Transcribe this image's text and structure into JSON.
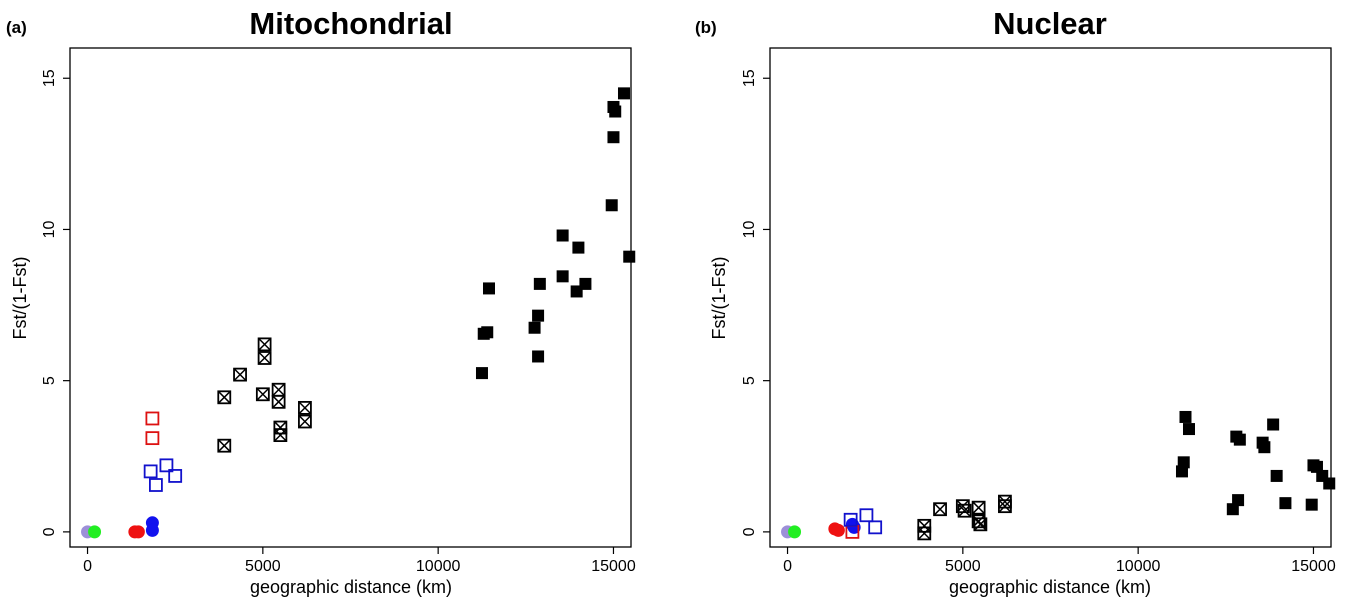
{
  "chart_data": [
    {
      "panel_label": "(a)",
      "type": "scatter",
      "title": "Mitochondrial",
      "xlabel": "geographic distance (km)",
      "ylabel": "Fst/(1-Fst)",
      "xlim": [
        -500,
        15500
      ],
      "ylim": [
        -0.5,
        16
      ],
      "xticks": [
        0,
        5000,
        10000,
        15000
      ],
      "yticks": [
        0,
        5,
        10,
        15
      ],
      "grid": false,
      "legend": "none",
      "series": [
        {
          "marker": "circle-filled",
          "color": "#9c8fd8",
          "points": [
            [
              0,
              0
            ]
          ]
        },
        {
          "marker": "circle-filled",
          "color": "#22ee22",
          "points": [
            [
              200,
              0
            ]
          ]
        },
        {
          "marker": "circle-filled",
          "color": "#ee1111",
          "points": [
            [
              1350,
              0
            ],
            [
              1450,
              0
            ]
          ]
        },
        {
          "marker": "circle-filled",
          "color": "#1111ee",
          "points": [
            [
              1850,
              0.3
            ],
            [
              1850,
              0.05
            ]
          ]
        },
        {
          "marker": "square-open",
          "color": "#dd1111",
          "points": [
            [
              1850,
              3.75
            ],
            [
              1850,
              3.1
            ]
          ]
        },
        {
          "marker": "square-open",
          "color": "#1111cc",
          "points": [
            [
              1800,
              2.0
            ],
            [
              1950,
              1.55
            ],
            [
              2250,
              2.2
            ],
            [
              2500,
              1.85
            ]
          ]
        },
        {
          "marker": "square-x",
          "color": "#000000",
          "points": [
            [
              3900,
              4.45
            ],
            [
              3900,
              2.85
            ],
            [
              4350,
              5.2
            ],
            [
              5050,
              6.2
            ],
            [
              5050,
              5.75
            ],
            [
              5000,
              4.55
            ],
            [
              5450,
              4.7
            ],
            [
              5450,
              4.3
            ],
            [
              5500,
              3.45
            ],
            [
              5500,
              3.2
            ],
            [
              6200,
              4.1
            ],
            [
              6200,
              3.65
            ]
          ]
        },
        {
          "marker": "square-filled",
          "color": "#000000",
          "points": [
            [
              11250,
              5.25
            ],
            [
              11300,
              6.55
            ],
            [
              11400,
              6.6
            ],
            [
              11450,
              8.05
            ],
            [
              12750,
              6.75
            ],
            [
              12850,
              7.15
            ],
            [
              12900,
              8.2
            ],
            [
              12850,
              5.8
            ],
            [
              13550,
              9.8
            ],
            [
              13550,
              8.45
            ],
            [
              13950,
              7.95
            ],
            [
              14000,
              9.4
            ],
            [
              14200,
              8.2
            ],
            [
              14950,
              10.8
            ],
            [
              15000,
              14.05
            ],
            [
              15050,
              13.9
            ],
            [
              15000,
              13.05
            ],
            [
              15300,
              14.5
            ],
            [
              15450,
              9.1
            ]
          ]
        }
      ]
    },
    {
      "panel_label": "(b)",
      "type": "scatter",
      "title": "Nuclear",
      "xlabel": "geographic distance (km)",
      "ylabel": "Fst/(1-Fst)",
      "xlim": [
        -500,
        15500
      ],
      "ylim": [
        -0.5,
        16
      ],
      "xticks": [
        0,
        5000,
        10000,
        15000
      ],
      "yticks": [
        0,
        5,
        10,
        15
      ],
      "grid": false,
      "legend": "none",
      "series": [
        {
          "marker": "circle-filled",
          "color": "#9c8fd8",
          "points": [
            [
              0,
              0
            ]
          ]
        },
        {
          "marker": "circle-filled",
          "color": "#22ee22",
          "points": [
            [
              200,
              0
            ]
          ]
        },
        {
          "marker": "circle-filled",
          "color": "#ee1111",
          "points": [
            [
              1350,
              0.1
            ],
            [
              1450,
              0.05
            ]
          ]
        },
        {
          "marker": "circle-filled",
          "color": "#1111ee",
          "points": [
            [
              1850,
              0.25
            ],
            [
              1900,
              0.15
            ]
          ]
        },
        {
          "marker": "square-open",
          "color": "#dd1111",
          "points": [
            [
              1850,
              0.0
            ]
          ]
        },
        {
          "marker": "square-open",
          "color": "#1111cc",
          "points": [
            [
              1800,
              0.4
            ],
            [
              2250,
              0.55
            ],
            [
              2500,
              0.15
            ]
          ]
        },
        {
          "marker": "square-x",
          "color": "#000000",
          "points": [
            [
              3900,
              0.2
            ],
            [
              3900,
              -0.05
            ],
            [
              4350,
              0.75
            ],
            [
              5000,
              0.85
            ],
            [
              5050,
              0.7
            ],
            [
              5450,
              0.8
            ],
            [
              5450,
              0.35
            ],
            [
              5500,
              0.25
            ],
            [
              6200,
              1.0
            ],
            [
              6200,
              0.85
            ]
          ]
        },
        {
          "marker": "square-filled",
          "color": "#000000",
          "points": [
            [
              11250,
              2.0
            ],
            [
              11300,
              2.3
            ],
            [
              11350,
              3.8
            ],
            [
              11450,
              3.4
            ],
            [
              12700,
              0.75
            ],
            [
              12850,
              1.05
            ],
            [
              12800,
              3.15
            ],
            [
              12900,
              3.05
            ],
            [
              13550,
              2.95
            ],
            [
              13600,
              2.8
            ],
            [
              13850,
              3.55
            ],
            [
              13950,
              1.85
            ],
            [
              14200,
              0.95
            ],
            [
              14950,
              0.9
            ],
            [
              15000,
              2.2
            ],
            [
              15100,
              2.15
            ],
            [
              15250,
              1.85
            ],
            [
              15450,
              1.6
            ]
          ]
        }
      ]
    }
  ]
}
